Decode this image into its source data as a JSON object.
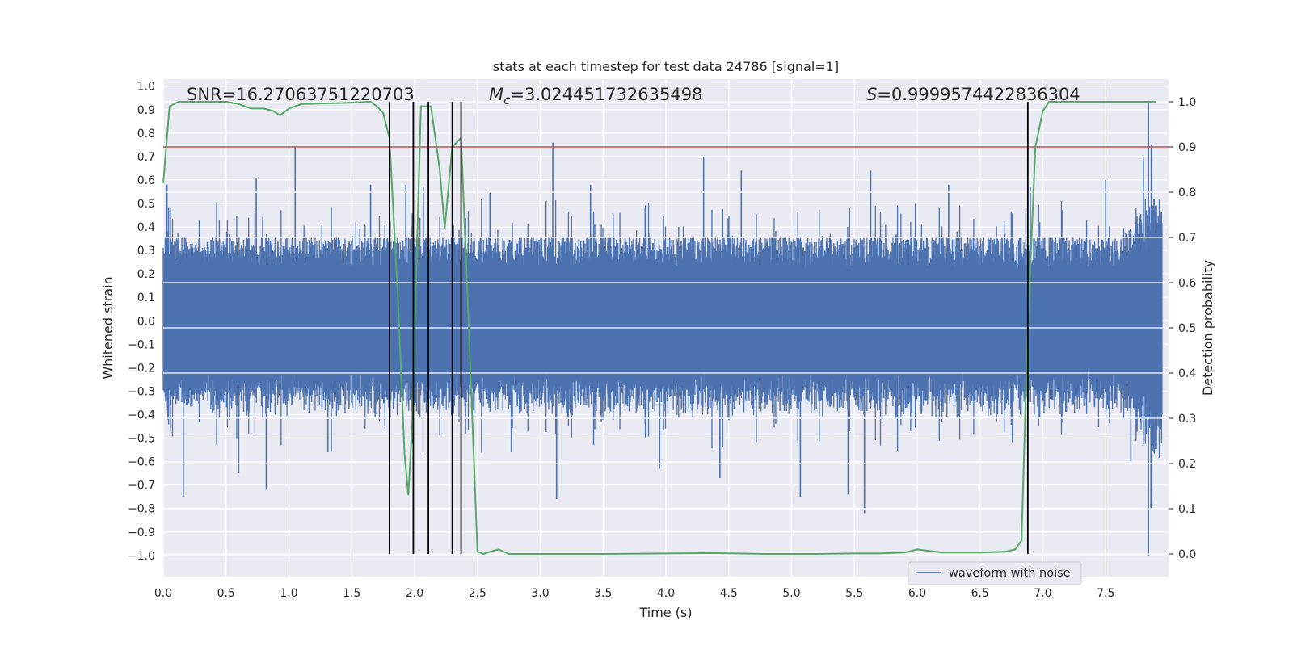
{
  "chart_data": {
    "type": "line",
    "title": "stats at each timestep for test data 24786 [signal=1]",
    "xlabel": "Time (s)",
    "ylabel": "Whitened strain",
    "y2label": "Detection probability",
    "xlim": [
      0.0,
      8.0
    ],
    "ylim": [
      -1.09,
      1.03
    ],
    "y2lim": [
      -0.05,
      1.05
    ],
    "xticks": [
      "0.0",
      "0.5",
      "1.0",
      "1.5",
      "2.0",
      "2.5",
      "3.0",
      "3.5",
      "4.0",
      "4.5",
      "5.0",
      "5.5",
      "6.0",
      "6.5",
      "7.0",
      "7.5"
    ],
    "yticks": [
      "1.0",
      "0.9",
      "0.8",
      "0.7",
      "0.6",
      "0.5",
      "0.4",
      "0.3",
      "0.2",
      "0.1",
      "0.0",
      "-0.1",
      "-0.2",
      "-0.3",
      "-0.4",
      "-0.5",
      "-0.6",
      "-0.7",
      "-0.8",
      "-0.9",
      "-1.0"
    ],
    "y2ticks": [
      "1.0",
      "0.9",
      "0.8",
      "0.7",
      "0.6",
      "0.5",
      "0.4",
      "0.3",
      "0.2",
      "0.1",
      "0.0"
    ],
    "annotations": {
      "snr": "SNR=16.27063751220703",
      "mc_prefix": "M",
      "mc_sub": "c",
      "mc_value": "=3.024451732635498",
      "s_prefix": "S",
      "s_value": "=0.9999574422836304"
    },
    "threshold": 0.9,
    "event_lines_x": [
      1.8,
      1.99,
      2.11,
      2.3,
      2.37,
      6.88
    ],
    "legend": "waveform with noise",
    "noise_envelope": {
      "typical_amplitude": 0.3,
      "spikes": [
        {
          "x": 0.03,
          "y": 0.58
        },
        {
          "x": 0.16,
          "y": -0.75
        },
        {
          "x": 0.6,
          "y": -0.65
        },
        {
          "x": 0.74,
          "y": 0.61
        },
        {
          "x": 0.82,
          "y": -0.72
        },
        {
          "x": 1.05,
          "y": 0.74
        },
        {
          "x": 1.31,
          "y": -0.56
        },
        {
          "x": 1.65,
          "y": 0.58
        },
        {
          "x": 1.93,
          "y": 0.58
        },
        {
          "x": 2.07,
          "y": 0.57
        },
        {
          "x": 2.6,
          "y": 0.55
        },
        {
          "x": 2.77,
          "y": -0.56
        },
        {
          "x": 3.1,
          "y": 0.76
        },
        {
          "x": 3.13,
          "y": -0.76
        },
        {
          "x": 3.4,
          "y": 0.58
        },
        {
          "x": 3.95,
          "y": -0.63
        },
        {
          "x": 4.3,
          "y": 0.7
        },
        {
          "x": 4.43,
          "y": -0.67
        },
        {
          "x": 4.6,
          "y": 0.64
        },
        {
          "x": 5.07,
          "y": -0.75
        },
        {
          "x": 5.45,
          "y": -0.74
        },
        {
          "x": 5.58,
          "y": -0.82
        },
        {
          "x": 5.63,
          "y": 0.64
        },
        {
          "x": 6.25,
          "y": 0.58
        },
        {
          "x": 6.9,
          "y": 0.57
        },
        {
          "x": 7.5,
          "y": 0.6
        },
        {
          "x": 7.7,
          "y": -0.6
        },
        {
          "x": 7.84,
          "y": 0.93
        },
        {
          "x": 7.84,
          "y": -1.0
        },
        {
          "x": 7.8,
          "y": 0.7
        },
        {
          "x": 7.86,
          "y": -0.8
        }
      ]
    },
    "series": [
      {
        "name": "detection probability",
        "axis": "right",
        "x": [
          0.0,
          0.05,
          0.12,
          0.5,
          0.6,
          0.7,
          0.8,
          0.87,
          0.93,
          1.0,
          1.1,
          1.5,
          1.65,
          1.7,
          1.75,
          1.8,
          1.87,
          1.92,
          1.95,
          1.98,
          2.05,
          2.08,
          2.13,
          2.2,
          2.24,
          2.3,
          2.37,
          2.42,
          2.5,
          2.55,
          2.6,
          2.67,
          2.75,
          3.0,
          3.5,
          4.0,
          4.4,
          4.8,
          5.2,
          5.5,
          5.7,
          5.9,
          6.0,
          6.2,
          6.5,
          6.7,
          6.78,
          6.83,
          6.88,
          6.94,
          7.0,
          7.05,
          7.3,
          7.9
        ],
        "y": [
          0.82,
          0.99,
          1.0,
          1.0,
          0.995,
          0.985,
          0.985,
          0.98,
          0.97,
          0.985,
          0.995,
          0.998,
          1.0,
          0.99,
          0.975,
          0.92,
          0.55,
          0.22,
          0.13,
          0.28,
          0.99,
          0.99,
          0.99,
          0.85,
          0.72,
          0.9,
          0.92,
          0.58,
          0.005,
          0.0,
          0.005,
          0.01,
          0.0,
          0.0,
          0.0,
          0.001,
          0.002,
          0.0,
          0.0,
          0.001,
          0.001,
          0.003,
          0.01,
          0.003,
          0.003,
          0.005,
          0.01,
          0.03,
          0.5,
          0.9,
          0.98,
          1.0,
          1.0,
          1.0
        ]
      }
    ]
  }
}
